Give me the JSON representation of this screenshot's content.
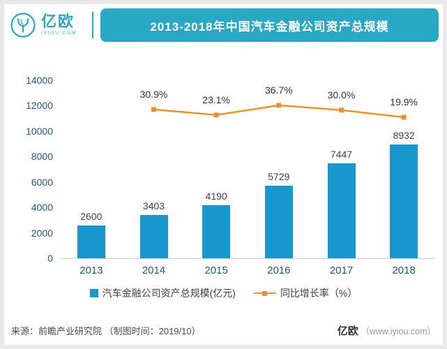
{
  "header": {
    "logo_text": "亿欧",
    "logo_subtext": "IYIOU·COM",
    "title": "2013-2018年中国汽车金融公司资产总规模"
  },
  "chart_data": {
    "type": "bar",
    "categories": [
      "2013",
      "2014",
      "2015",
      "2016",
      "2017",
      "2018"
    ],
    "series": [
      {
        "name": "汽车金融公司资产总规模(亿元)",
        "type": "bar",
        "values": [
          2600,
          3403,
          4190,
          5729,
          7447,
          8932
        ],
        "color": "#1799CE"
      },
      {
        "name": "同比增长率（%）",
        "type": "line",
        "values": [
          null,
          30.9,
          23.1,
          36.7,
          30.0,
          19.9
        ],
        "labels": [
          "",
          "30.9%",
          "23.1%",
          "36.7%",
          "30.0%",
          "19.9%"
        ],
        "color": "#E8932C"
      }
    ],
    "title": "2013-2018年中国汽车金融公司资产总规模",
    "xlabel": "",
    "ylabel": "",
    "y_axis": {
      "min": 0,
      "max": 14000,
      "ticks": [
        0,
        2000,
        4000,
        6000,
        8000,
        10000,
        12000,
        14000
      ]
    },
    "grid": false,
    "legend_position": "bottom",
    "line_axis_mapping": {
      "ref_value": 19.9,
      "ref_fraction": 0.792,
      "fraction_per_point": 0.004
    }
  },
  "legend": [
    {
      "label": "汽车金融公司资产总规模(亿元)",
      "marker": "square",
      "color": "#1799CE"
    },
    {
      "label": "同比增长率（%）",
      "marker": "line-square",
      "color": "#E8932C"
    }
  ],
  "footer": {
    "source": "来源：前瞻产业研究院 （制图时间：2019/10）",
    "brand": "亿欧",
    "brand_site": "（www.iyiou.com）"
  },
  "colors": {
    "banner": "#2BA7C6",
    "bar": "#1799CE",
    "line": "#E8932C",
    "axis_label": "#235A71",
    "value_label": "#404040"
  }
}
